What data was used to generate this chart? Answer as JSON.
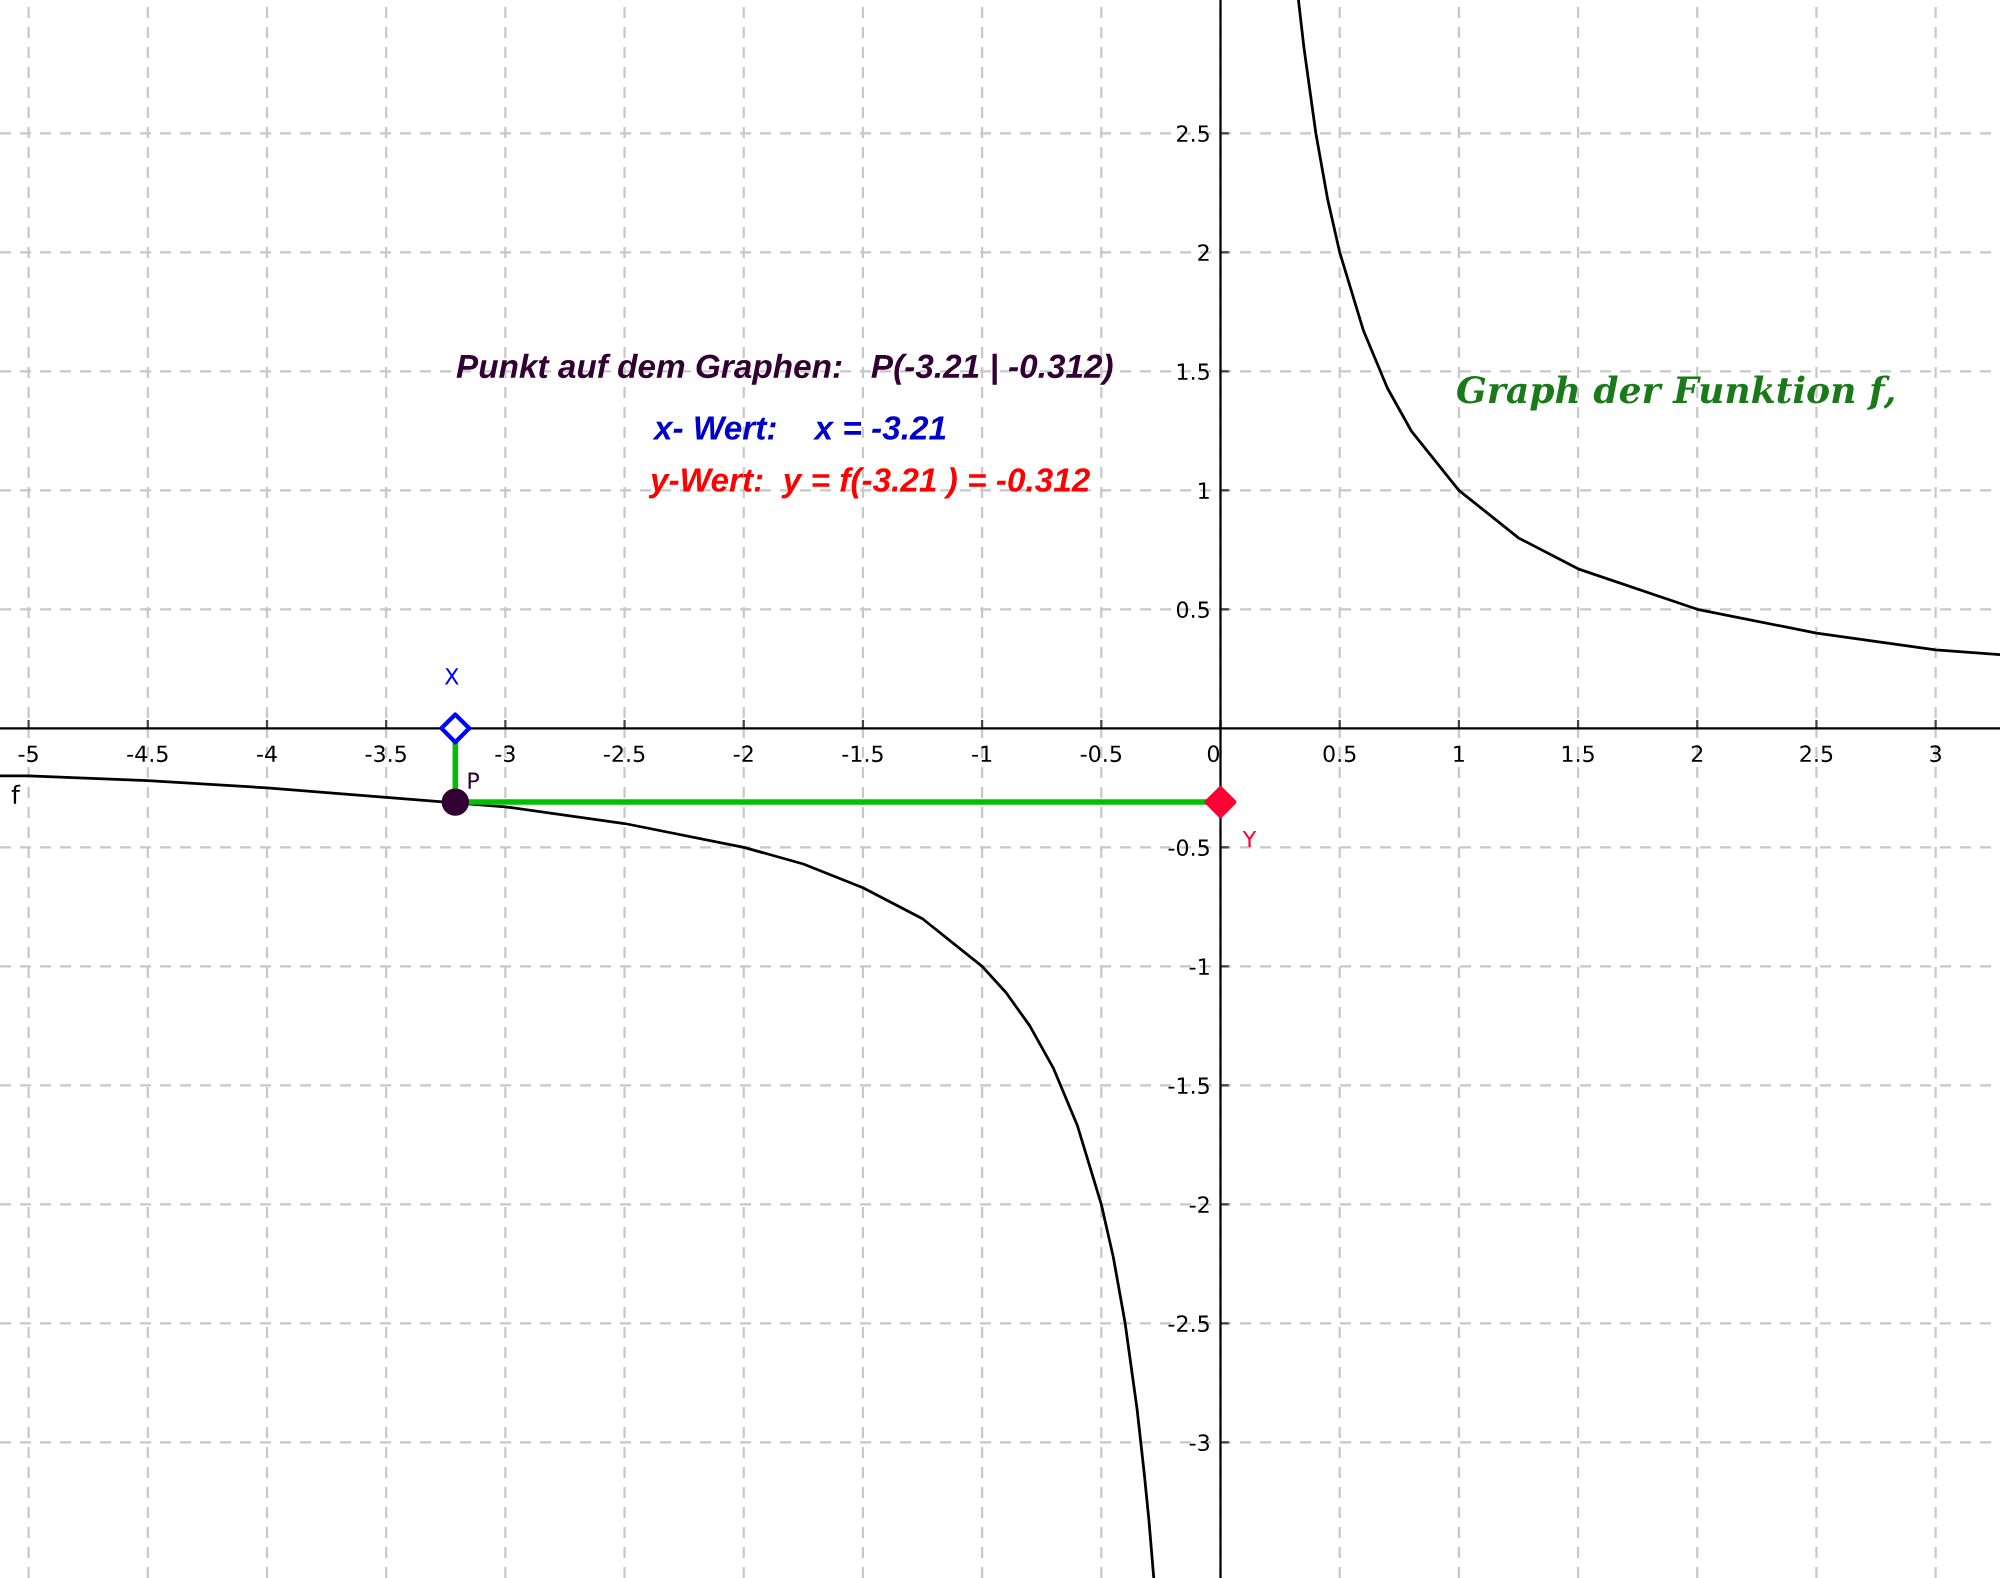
{
  "chart_data": {
    "type": "line",
    "xlim": [
      -5.12,
      3.27
    ],
    "ylim": [
      -3.57,
      3.06
    ],
    "xticks": [
      -5,
      -4.5,
      -4,
      -3.5,
      -3,
      -2.5,
      -2,
      -1.5,
      -1,
      -0.5,
      0,
      0.5,
      1,
      1.5,
      2,
      2.5,
      3
    ],
    "yticks": [
      -3,
      -2.5,
      -2,
      -1.5,
      -1,
      -0.5,
      0.5,
      1,
      1.5,
      2,
      2.5
    ],
    "grid": true,
    "series": [
      {
        "name": "f",
        "color": "#000000",
        "x": [
          -5.12,
          -5,
          -4.5,
          -4,
          -3.5,
          -3,
          -2.5,
          -2,
          -1.75,
          -1.5,
          -1.25,
          -1,
          -0.9,
          -0.8,
          -0.7,
          -0.6,
          -0.5,
          -0.45,
          -0.4,
          -0.35,
          -0.32,
          -0.3,
          -0.28
        ],
        "values": [
          -0.2,
          -0.2,
          -0.22,
          -0.25,
          -0.29,
          -0.33,
          -0.4,
          -0.5,
          -0.57,
          -0.67,
          -0.8,
          -1,
          -1.11,
          -1.25,
          -1.43,
          -1.67,
          -2,
          -2.22,
          -2.5,
          -2.86,
          -3.13,
          -3.33,
          -3.57
        ]
      },
      {
        "color": "#000000",
        "x": [
          0.327,
          0.35,
          0.4,
          0.45,
          0.5,
          0.6,
          0.7,
          0.8,
          1,
          1.25,
          1.5,
          2,
          2.5,
          3,
          3.27
        ],
        "values": [
          3.06,
          2.86,
          2.5,
          2.22,
          2,
          1.67,
          1.43,
          1.25,
          1,
          0.8,
          0.67,
          0.5,
          0.4,
          0.33,
          0.31
        ]
      },
      {
        "color": "#00c000",
        "x": [
          -3.21,
          -3.21
        ],
        "values": [
          0,
          -0.31
        ]
      },
      {
        "color": "#00c000",
        "x": [
          -3.21,
          0
        ],
        "values": [
          -0.31,
          -0.31
        ]
      },
      {
        "name": "X",
        "type": "scatter",
        "marker": "diamond",
        "color": "#0000ff",
        "x": [
          -3.21
        ],
        "values": [
          0
        ]
      },
      {
        "name": "P",
        "type": "scatter",
        "marker": "circle",
        "color": "#330033",
        "x": [
          -3.21
        ],
        "values": [
          -0.31
        ]
      },
      {
        "name": "Y",
        "type": "scatter",
        "marker": "diamond",
        "color": "#ff0033",
        "x": [
          0
        ],
        "values": [
          -0.31
        ]
      }
    ],
    "annotations": [
      "Punkt auf dem Graphen:   P(-3.21 | -0.312)",
      "x- Wert:    x = -3.21",
      "y-Wert:  y = f(-3.21 ) = -0.312",
      "Graph der Funktion f,"
    ]
  }
}
